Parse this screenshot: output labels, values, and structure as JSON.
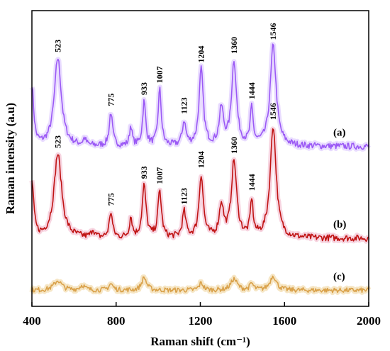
{
  "chart_data": {
    "type": "line",
    "xlabel": "Raman shift (cm⁻¹)",
    "ylabel": "Raman intensity (a.u)",
    "xlim": [
      400,
      2000
    ],
    "x_ticks": [
      "400",
      "800",
      "1200",
      "1600",
      "2000"
    ],
    "y_ticks_shown": false,
    "grid": false,
    "legend": "none",
    "peak_positions": [
      523,
      775,
      933,
      1007,
      1123,
      1204,
      1360,
      1444,
      1546
    ],
    "series": [
      {
        "label": "(a)",
        "color": "#9b59f5",
        "glow": "#e9dcff",
        "offset": 200,
        "noise": 4,
        "baseline": 0,
        "peaks": [
          {
            "x": 400,
            "h": 75,
            "w": 10
          },
          {
            "x": 523,
            "h": 110,
            "w": 20
          },
          {
            "x": 650,
            "h": 8,
            "w": 8
          },
          {
            "x": 775,
            "h": 42,
            "w": 9
          },
          {
            "x": 870,
            "h": 25,
            "w": 7
          },
          {
            "x": 933,
            "h": 55,
            "w": 9
          },
          {
            "x": 1007,
            "h": 70,
            "w": 9
          },
          {
            "x": 1123,
            "h": 30,
            "w": 10
          },
          {
            "x": 1204,
            "h": 95,
            "w": 12
          },
          {
            "x": 1300,
            "h": 45,
            "w": 12
          },
          {
            "x": 1360,
            "h": 105,
            "w": 14
          },
          {
            "x": 1444,
            "h": 45,
            "w": 8
          },
          {
            "x": 1546,
            "h": 125,
            "w": 17
          }
        ],
        "annotations": [
          "523",
          "775",
          "933",
          "1007",
          "1123",
          "1204",
          "1360",
          "1444",
          "1546"
        ]
      },
      {
        "label": "(b)",
        "color": "#c01414",
        "glow": "#f7d4e0",
        "offset": 85,
        "noise": 4,
        "baseline": 0,
        "peaks": [
          {
            "x": 400,
            "h": 70,
            "w": 10
          },
          {
            "x": 523,
            "h": 105,
            "w": 22
          },
          {
            "x": 690,
            "h": 10,
            "w": 8
          },
          {
            "x": 775,
            "h": 32,
            "w": 9
          },
          {
            "x": 870,
            "h": 25,
            "w": 8
          },
          {
            "x": 933,
            "h": 65,
            "w": 11
          },
          {
            "x": 1007,
            "h": 58,
            "w": 10
          },
          {
            "x": 1123,
            "h": 32,
            "w": 10
          },
          {
            "x": 1204,
            "h": 78,
            "w": 12
          },
          {
            "x": 1300,
            "h": 40,
            "w": 12
          },
          {
            "x": 1360,
            "h": 95,
            "w": 15
          },
          {
            "x": 1444,
            "h": 45,
            "w": 8
          },
          {
            "x": 1546,
            "h": 140,
            "w": 17
          }
        ],
        "annotations": [
          "523",
          "775",
          "933",
          "1007",
          "1123",
          "1204",
          "1360",
          "1444",
          "1546"
        ]
      },
      {
        "label": "(c)",
        "color": "#d9a14a",
        "glow": "#f6e6c5",
        "offset": 20,
        "noise": 3,
        "baseline": 0,
        "peaks": [
          {
            "x": 523,
            "h": 12,
            "w": 22
          },
          {
            "x": 640,
            "h": 6,
            "w": 15
          },
          {
            "x": 775,
            "h": 8,
            "w": 12
          },
          {
            "x": 933,
            "h": 16,
            "w": 14
          },
          {
            "x": 1204,
            "h": 9,
            "w": 12
          },
          {
            "x": 1360,
            "h": 14,
            "w": 18
          },
          {
            "x": 1444,
            "h": 8,
            "w": 10
          },
          {
            "x": 1546,
            "h": 18,
            "w": 18
          }
        ],
        "annotations": []
      }
    ]
  }
}
